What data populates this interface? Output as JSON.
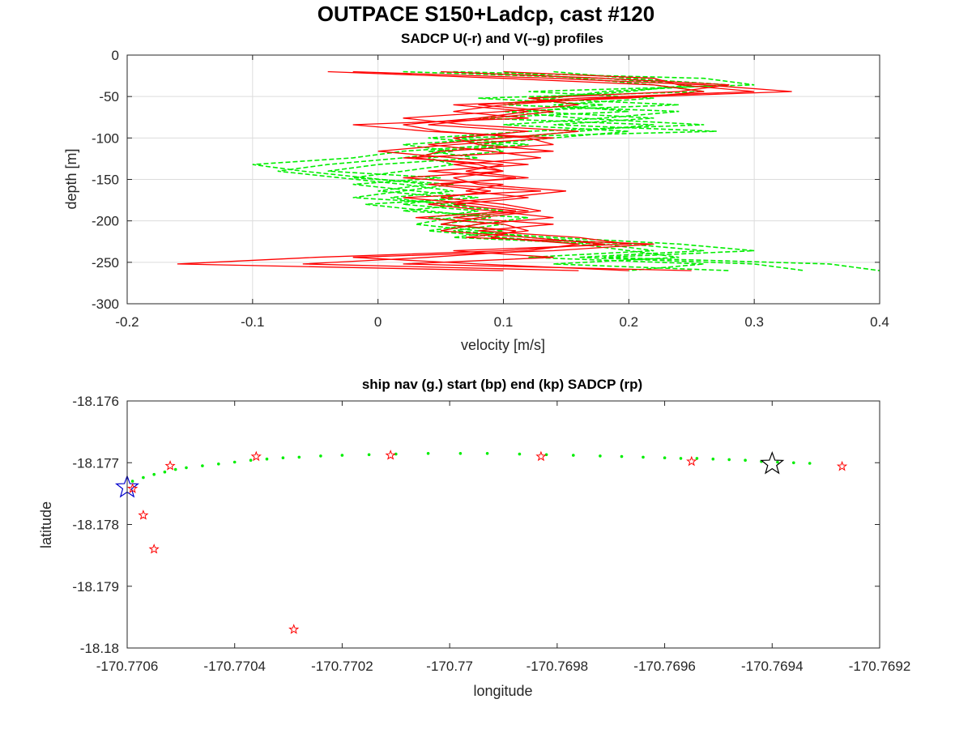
{
  "figure": {
    "title": "OUTPACE S150+Ladcp, cast #120"
  },
  "chart_data": [
    {
      "type": "line",
      "title": "SADCP U(-r) and V(--g) profiles",
      "xlabel": "velocity [m/s]",
      "ylabel": "depth [m]",
      "xlim": [
        -0.2,
        0.4
      ],
      "ylim": [
        -300,
        0
      ],
      "xticks": [
        "-0.2",
        "-0.1",
        "0",
        "0.1",
        "0.2",
        "0.3",
        "0.4"
      ],
      "yticks": [
        "0",
        "-50",
        "-100",
        "-150",
        "-200",
        "-250",
        "-300"
      ],
      "grid": true,
      "depth": [
        -20,
        -28,
        -36,
        -44,
        -52,
        -60,
        -68,
        -76,
        -84,
        -92,
        -100,
        -108,
        -116,
        -124,
        -132,
        -140,
        -148,
        -156,
        -164,
        -172,
        -180,
        -188,
        -196,
        -204,
        -212,
        -220,
        -228,
        -236,
        -244,
        -252,
        -260
      ],
      "series": [
        {
          "name": "U",
          "color": "#ff0000",
          "style": "solid",
          "values": [
            [
              -0.04,
              0.1,
              0.22,
              0.26,
              0.2,
              0.06,
              0.12,
              0.08,
              0.02,
              0.05,
              0.12,
              0.14,
              0.05,
              0.03,
              0.08,
              0.1,
              0.06,
              0.08,
              0.15,
              0.1,
              0.04,
              0.09,
              0.14,
              0.08,
              0.05,
              0.12,
              0.18,
              0.1,
              -0.05,
              -0.16,
              0.1
            ],
            [
              -0.02,
              0.14,
              0.26,
              0.33,
              0.18,
              0.1,
              0.06,
              0.12,
              -0.02,
              0.04,
              0.14,
              0.06,
              0.0,
              0.06,
              0.12,
              0.04,
              0.11,
              0.05,
              0.13,
              0.02,
              0.08,
              0.12,
              0.06,
              0.14,
              0.08,
              0.16,
              0.2,
              0.06,
              0.14,
              0.02,
              0.25
            ],
            [
              0.05,
              0.18,
              0.28,
              0.24,
              0.12,
              0.16,
              0.1,
              0.02,
              0.07,
              0.16,
              0.1,
              0.04,
              0.09,
              0.13,
              0.06,
              0.1,
              0.02,
              0.1,
              0.07,
              0.12,
              0.06,
              0.11,
              0.03,
              0.1,
              0.12,
              0.07,
              0.22,
              0.14,
              -0.02,
              0.08,
              0.2
            ],
            [
              0.1,
              0.22,
              0.24,
              0.3,
              0.16,
              0.08,
              0.14,
              0.09,
              0.04,
              0.12,
              0.06,
              0.08,
              0.14,
              0.02,
              0.1,
              0.07,
              0.12,
              0.04,
              0.09,
              0.05,
              0.1,
              0.13,
              0.08,
              0.05,
              0.11,
              0.09,
              0.16,
              0.12,
              0.04,
              -0.06,
              0.16
            ]
          ]
        },
        {
          "name": "V",
          "color": "#00ee00",
          "style": "dashed",
          "values": [
            [
              0.02,
              0.18,
              0.25,
              0.2,
              0.12,
              0.24,
              0.1,
              0.16,
              0.26,
              0.12,
              0.04,
              0.1,
              0.02,
              -0.02,
              -0.1,
              -0.06,
              -0.01,
              0.04,
              0.0,
              0.06,
              0.02,
              0.08,
              0.04,
              0.1,
              0.06,
              0.14,
              0.24,
              0.3,
              0.18,
              0.36,
              0.4
            ],
            [
              0.06,
              0.26,
              0.3,
              0.12,
              0.22,
              0.14,
              0.2,
              0.08,
              0.22,
              0.16,
              0.1,
              0.02,
              0.06,
              0.02,
              -0.04,
              -0.08,
              -0.03,
              0.02,
              0.06,
              0.01,
              0.05,
              0.1,
              0.06,
              0.03,
              0.08,
              0.12,
              0.2,
              0.26,
              0.16,
              0.3,
              0.34
            ],
            [
              0.1,
              0.16,
              0.22,
              0.26,
              0.08,
              0.18,
              0.12,
              0.22,
              0.14,
              0.27,
              0.06,
              0.12,
              0.04,
              0.08,
              0.0,
              -0.04,
              0.05,
              -0.02,
              0.03,
              0.08,
              -0.01,
              0.04,
              0.09,
              0.05,
              0.1,
              0.06,
              0.18,
              0.22,
              0.12,
              0.26,
              0.2
            ],
            [
              0.14,
              0.2,
              0.28,
              0.18,
              0.14,
              0.1,
              0.24,
              0.18,
              0.1,
              0.2,
              0.14,
              0.08,
              0.1,
              0.04,
              0.06,
              0.02,
              -0.02,
              0.06,
              0.02,
              -0.02,
              0.07,
              0.02,
              0.12,
              0.08,
              0.04,
              0.1,
              0.16,
              0.2,
              0.24,
              0.14,
              0.28
            ]
          ]
        }
      ]
    },
    {
      "type": "scatter",
      "title": "ship nav (g.) start (bp) end (kp) SADCP (rp)",
      "xlabel": "longitude",
      "ylabel": "latitude",
      "xlim": [
        -170.7706,
        -170.7692
      ],
      "ylim": [
        -18.18,
        -18.176
      ],
      "xticks": [
        "-170.7706",
        "-170.7704",
        "-170.7702",
        "-170.77",
        "-170.7698",
        "-170.7696",
        "-170.7694",
        "-170.7692"
      ],
      "yticks": [
        "-18.176",
        "-18.177",
        "-18.178",
        "-18.179",
        "-18.18"
      ],
      "grid": false,
      "series": [
        {
          "name": "ship nav",
          "color": "#00ee00",
          "marker": "dot",
          "points": [
            [
              -170.77059,
              -18.1773
            ],
            [
              -170.77057,
              -18.17724
            ],
            [
              -170.77055,
              -18.17719
            ],
            [
              -170.77053,
              -18.17715
            ],
            [
              -170.77051,
              -18.17711
            ],
            [
              -170.77049,
              -18.17708
            ],
            [
              -170.77046,
              -18.17705
            ],
            [
              -170.77043,
              -18.17702
            ],
            [
              -170.7704,
              -18.17699
            ],
            [
              -170.77037,
              -18.17696
            ],
            [
              -170.77034,
              -18.17694
            ],
            [
              -170.77031,
              -18.17692
            ],
            [
              -170.77028,
              -18.17691
            ],
            [
              -170.77024,
              -18.17689
            ],
            [
              -170.7702,
              -18.17688
            ],
            [
              -170.77015,
              -18.17687
            ],
            [
              -170.7701,
              -18.17686
            ],
            [
              -170.77004,
              -18.17685
            ],
            [
              -170.76998,
              -18.17685
            ],
            [
              -170.76993,
              -18.17685
            ],
            [
              -170.76987,
              -18.17686
            ],
            [
              -170.76982,
              -18.17687
            ],
            [
              -170.76977,
              -18.17688
            ],
            [
              -170.76972,
              -18.17689
            ],
            [
              -170.76968,
              -18.1769
            ],
            [
              -170.76964,
              -18.17691
            ],
            [
              -170.7696,
              -18.17692
            ],
            [
              -170.76957,
              -18.17693
            ],
            [
              -170.76954,
              -18.17693
            ],
            [
              -170.76951,
              -18.17694
            ],
            [
              -170.76948,
              -18.17695
            ],
            [
              -170.76945,
              -18.17696
            ],
            [
              -170.76942,
              -18.17698
            ],
            [
              -170.76939,
              -18.17699
            ],
            [
              -170.76936,
              -18.177
            ],
            [
              -170.76933,
              -18.17701
            ]
          ]
        },
        {
          "name": "start",
          "color": "#0000cc",
          "marker": "big-star",
          "points": [
            [
              -170.7706,
              -18.1774
            ]
          ]
        },
        {
          "name": "end",
          "color": "#000000",
          "marker": "big-star",
          "points": [
            [
              -170.7694,
              -18.17702
            ]
          ]
        },
        {
          "name": "SADCP",
          "color": "#ff0000",
          "marker": "small-star",
          "points": [
            [
              -170.77059,
              -18.17742
            ],
            [
              -170.77057,
              -18.17785
            ],
            [
              -170.77055,
              -18.1784
            ],
            [
              -170.77052,
              -18.17705
            ],
            [
              -170.77036,
              -18.1769
            ],
            [
              -170.77029,
              -18.1797
            ],
            [
              -170.77011,
              -18.17688
            ],
            [
              -170.76983,
              -18.1769
            ],
            [
              -170.76955,
              -18.17698
            ],
            [
              -170.76927,
              -18.17706
            ]
          ]
        }
      ]
    }
  ]
}
